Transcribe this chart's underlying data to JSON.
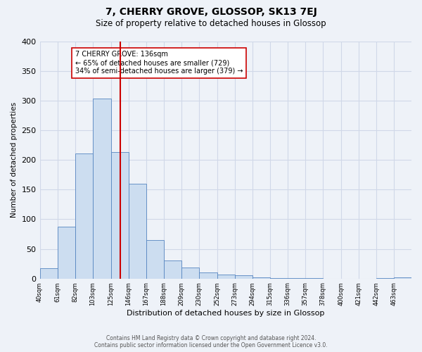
{
  "title": "7, CHERRY GROVE, GLOSSOP, SK13 7EJ",
  "subtitle": "Size of property relative to detached houses in Glossop",
  "xlabel": "Distribution of detached houses by size in Glossop",
  "ylabel": "Number of detached properties",
  "footer_line1": "Contains HM Land Registry data © Crown copyright and database right 2024.",
  "footer_line2": "Contains public sector information licensed under the Open Government Licence v3.0.",
  "bin_labels": [
    "40sqm",
    "61sqm",
    "82sqm",
    "103sqm",
    "125sqm",
    "146sqm",
    "167sqm",
    "188sqm",
    "209sqm",
    "230sqm",
    "252sqm",
    "273sqm",
    "294sqm",
    "315sqm",
    "336sqm",
    "357sqm",
    "378sqm",
    "400sqm",
    "421sqm",
    "442sqm",
    "463sqm"
  ],
  "bin_edges": [
    40,
    61,
    82,
    103,
    125,
    146,
    167,
    188,
    209,
    230,
    252,
    273,
    294,
    315,
    336,
    357,
    378,
    400,
    421,
    442,
    463,
    484
  ],
  "bar_heights": [
    17,
    87,
    211,
    304,
    214,
    160,
    65,
    30,
    18,
    10,
    7,
    5,
    2,
    1,
    1,
    1,
    0,
    0,
    0,
    1,
    2
  ],
  "bar_facecolor": "#ccddf0",
  "bar_edgecolor": "#5585c0",
  "vline_x": 136,
  "vline_color": "#cc0000",
  "annotation_title": "7 CHERRY GROVE: 136sqm",
  "annotation_line2": "← 65% of detached houses are smaller (729)",
  "annotation_line3": "34% of semi-detached houses are larger (379) →",
  "annotation_box_edgecolor": "#cc0000",
  "ylim": [
    0,
    400
  ],
  "yticks": [
    0,
    50,
    100,
    150,
    200,
    250,
    300,
    350,
    400
  ],
  "grid_color": "#d0d8e8",
  "bg_color": "#eef2f8"
}
